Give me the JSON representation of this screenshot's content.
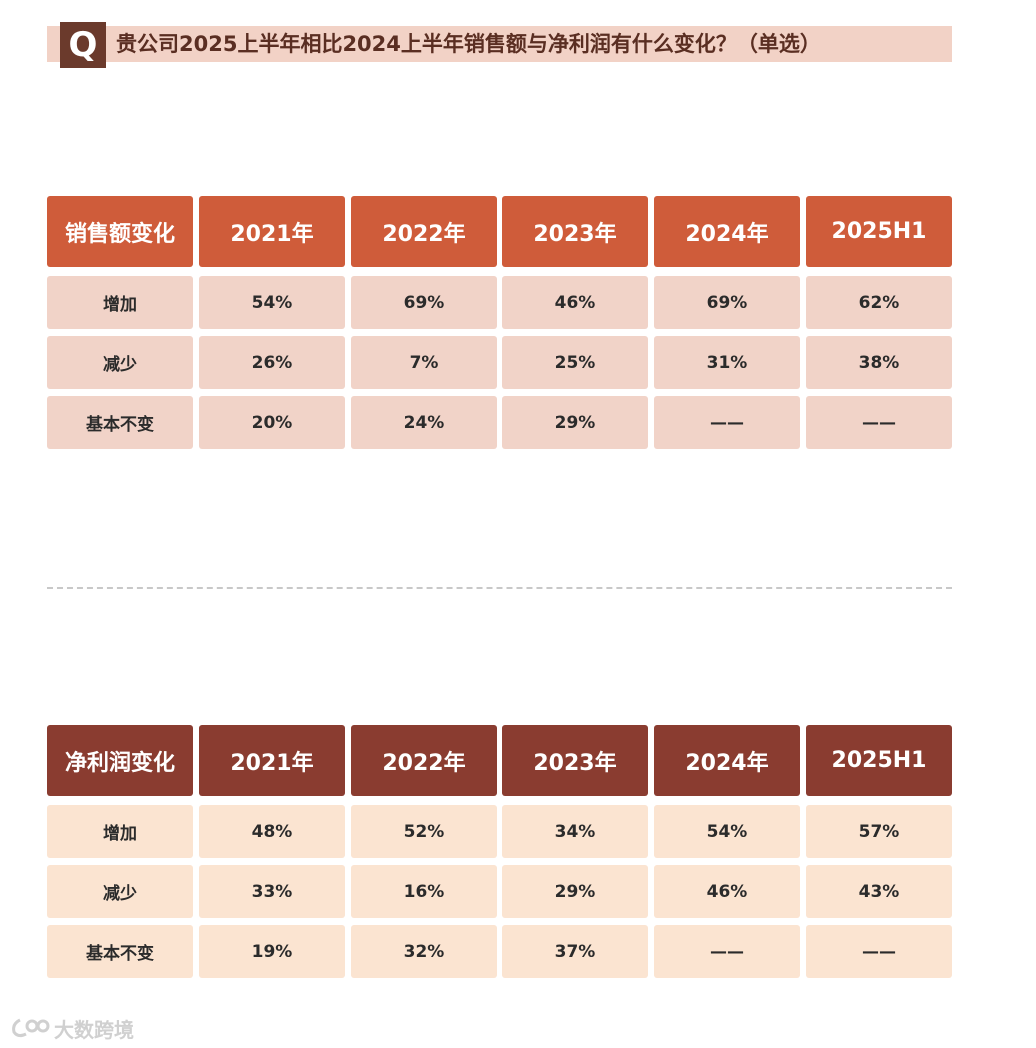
{
  "question": {
    "badge": "Q",
    "text": "贵公司2025上半年相比2024上半年销售额与净利润有什么变化？（单选）"
  },
  "tables": [
    {
      "header": [
        "销售额变化",
        "2021年",
        "2022年",
        "2023年",
        "2024年",
        "2025H1"
      ],
      "rows": [
        [
          "增加",
          "54%",
          "69%",
          "46%",
          "69%",
          "62%"
        ],
        [
          "减少",
          "26%",
          "7%",
          "25%",
          "31%",
          "38%"
        ],
        [
          "基本不变",
          "20%",
          "24%",
          "29%",
          "——",
          "——"
        ]
      ]
    },
    {
      "header": [
        "净利润变化",
        "2021年",
        "2022年",
        "2023年",
        "2024年",
        "2025H1"
      ],
      "rows": [
        [
          "增加",
          "48%",
          "52%",
          "34%",
          "54%",
          "57%"
        ],
        [
          "减少",
          "33%",
          "16%",
          "29%",
          "46%",
          "43%"
        ],
        [
          "基本不变",
          "19%",
          "32%",
          "37%",
          "——",
          "——"
        ]
      ]
    }
  ],
  "watermark": "大数跨境",
  "colors": {
    "sales_header": "#cf5c3a",
    "sales_body": "#f1d3c8",
    "profit_header": "#8a3c30",
    "profit_body": "#fbe4d1",
    "question_bar": "#f2d2c6",
    "question_badge": "#6b3a2c"
  },
  "chart_data": [
    {
      "type": "table",
      "title": "",
      "columns": [
        "销售额变化",
        "2021年",
        "2022年",
        "2023年",
        "2024年",
        "2025H1"
      ],
      "rows": [
        [
          "增加",
          "54%",
          "69%",
          "46%",
          "69%",
          "62%"
        ],
        [
          "减少",
          "26%",
          "7%",
          "25%",
          "31%",
          "38%"
        ],
        [
          "基本不变",
          "20%",
          "24%",
          "29%",
          "——",
          "——"
        ]
      ]
    },
    {
      "type": "table",
      "title": "",
      "columns": [
        "净利润变化",
        "2021年",
        "2022年",
        "2023年",
        "2024年",
        "2025H1"
      ],
      "rows": [
        [
          "增加",
          "48%",
          "52%",
          "34%",
          "54%",
          "57%"
        ],
        [
          "减少",
          "33%",
          "16%",
          "29%",
          "46%",
          "43%"
        ],
        [
          "基本不变",
          "19%",
          "32%",
          "37%",
          "——",
          "——"
        ]
      ]
    }
  ]
}
